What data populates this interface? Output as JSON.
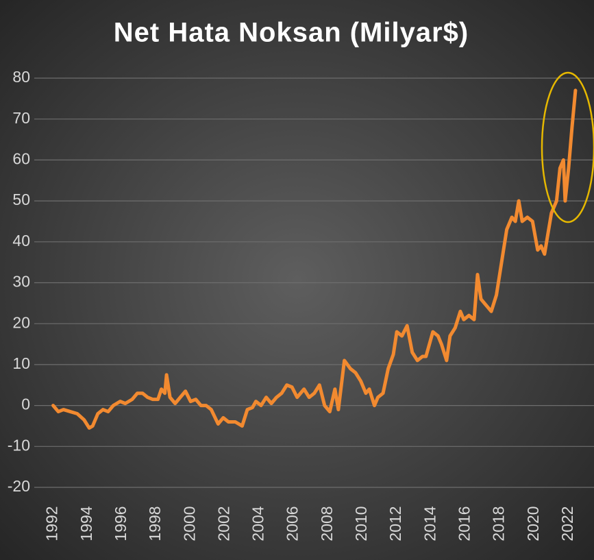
{
  "chart_data": {
    "type": "line",
    "title": "Net Hata Noksan (Milyar$)",
    "x": [
      1992.0,
      1992.3,
      1992.6,
      1993.0,
      1993.4,
      1993.8,
      1994.1,
      1994.3,
      1994.6,
      1994.9,
      1995.2,
      1995.5,
      1995.9,
      1996.2,
      1996.6,
      1996.9,
      1997.2,
      1997.5,
      1997.8,
      1998.1,
      1998.3,
      1998.5,
      1998.6,
      1998.8,
      1999.1,
      1999.4,
      1999.7,
      2000.0,
      2000.3,
      2000.6,
      2000.9,
      2001.2,
      2001.6,
      2001.9,
      2002.2,
      2002.6,
      2003.0,
      2003.3,
      2003.6,
      2003.8,
      2004.1,
      2004.4,
      2004.7,
      2005.0,
      2005.3,
      2005.6,
      2005.9,
      2006.2,
      2006.6,
      2006.9,
      2007.2,
      2007.5,
      2007.8,
      2008.1,
      2008.4,
      2008.6,
      2008.95,
      2009.3,
      2009.6,
      2009.9,
      2010.2,
      2010.4,
      2010.7,
      2010.9,
      2011.2,
      2011.5,
      2011.8,
      2012.0,
      2012.3,
      2012.6,
      2012.9,
      2013.2,
      2013.5,
      2013.7,
      2014.1,
      2014.4,
      2014.6,
      2014.9,
      2015.1,
      2015.4,
      2015.7,
      2015.9,
      2016.2,
      2016.5,
      2016.7,
      2016.9,
      2017.1,
      2017.3,
      2017.5,
      2017.8,
      2018.1,
      2018.4,
      2018.7,
      2018.9,
      2019.1,
      2019.3,
      2019.6,
      2019.9,
      2020.2,
      2020.4,
      2020.6,
      2020.8,
      2021.0,
      2021.3,
      2021.5,
      2021.7,
      2021.8,
      2022.0,
      2022.2,
      2022.4
    ],
    "series": [
      {
        "color": "#f28a30",
        "values": [
          0,
          -1.5,
          -1,
          -1.5,
          -2,
          -3.5,
          -5.5,
          -5,
          -2,
          -1,
          -1.5,
          0,
          1,
          0.5,
          1.5,
          3,
          3,
          2,
          1.5,
          1.5,
          4,
          3,
          7.5,
          2,
          0.5,
          2,
          3.5,
          1,
          1.5,
          0,
          0,
          -1,
          -4.5,
          -3,
          -4,
          -4,
          -5,
          -1,
          -0.5,
          1,
          0,
          2,
          0.5,
          2,
          3,
          5,
          4.5,
          2,
          4,
          2,
          3,
          5,
          0,
          -1.5,
          4,
          -1,
          11,
          9,
          8,
          6,
          3,
          4,
          0,
          2,
          3,
          9,
          12.5,
          18,
          17,
          19.5,
          13,
          11,
          12,
          12,
          18,
          17,
          15,
          11,
          17,
          19,
          23,
          21,
          22,
          21,
          32,
          26,
          25,
          24,
          23,
          27,
          35,
          43,
          46,
          45,
          50,
          45,
          46,
          45,
          38,
          39,
          37,
          42,
          47,
          50,
          58,
          60,
          50,
          58,
          68,
          77
        ]
      }
    ],
    "xlim": [
      1990.9,
      2023.2
    ],
    "xticks": [
      1992,
      1994,
      1996,
      1998,
      2000,
      2002,
      2004,
      2006,
      2008,
      2010,
      2012,
      2014,
      2016,
      2018,
      2020,
      2022
    ],
    "ylim": [
      -20,
      80
    ],
    "yticks": [
      -20,
      -10,
      0,
      10,
      20,
      30,
      40,
      50,
      60,
      70,
      80
    ],
    "grid": true
  }
}
